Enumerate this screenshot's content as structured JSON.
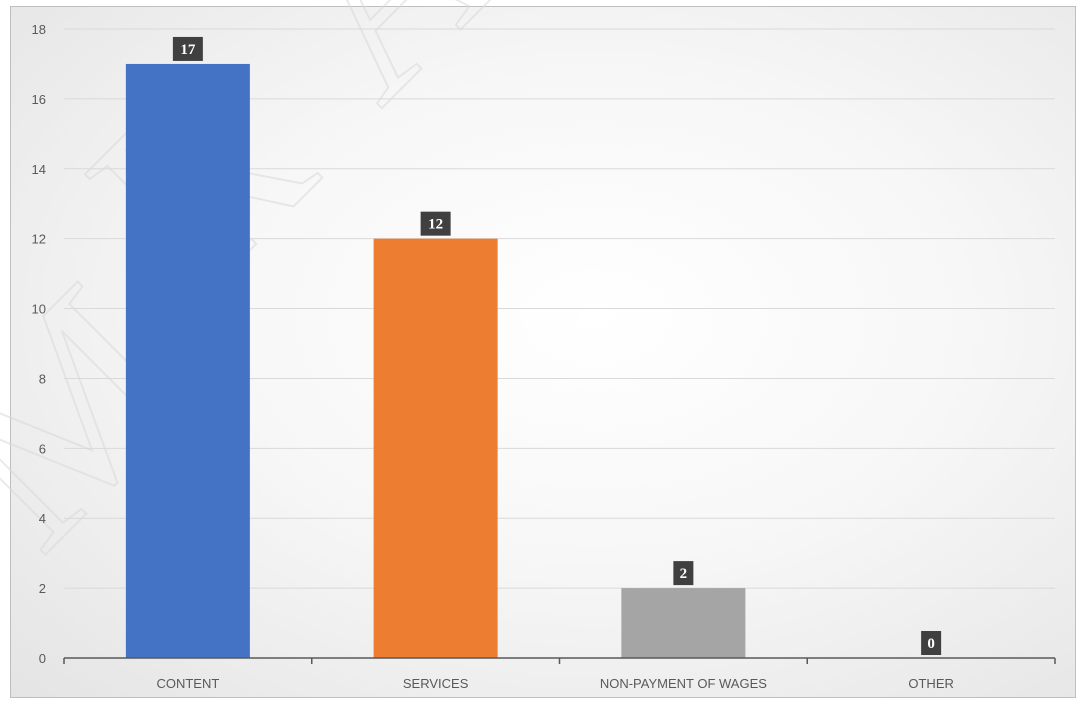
{
  "colors": {
    "bar_colors": [
      "#4472c4",
      "#ed7d31",
      "#a5a5a5",
      "#ffc000"
    ],
    "gridline": "#d9d9d9",
    "axis": "#595959",
    "data_label_bg": "#404040"
  },
  "chart_data": {
    "type": "bar",
    "categories": [
      "CONTENT",
      "SERVICES",
      "NON-PAYMENT OF WAGES",
      "OTHER"
    ],
    "values": [
      17,
      12,
      2,
      0
    ],
    "data_labels": [
      "17",
      "12",
      "2",
      "0"
    ],
    "title": "",
    "xlabel": "",
    "ylabel": "",
    "ylim": [
      0,
      18
    ],
    "yticks": [
      "0",
      "2",
      "4",
      "6",
      "8",
      "10",
      "12",
      "14",
      "16",
      "18"
    ],
    "grid": true,
    "legend": "none"
  }
}
